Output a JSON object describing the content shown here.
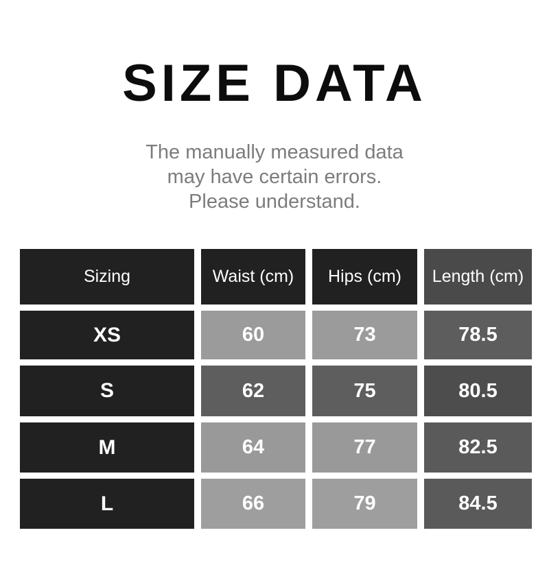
{
  "page": {
    "title": "SIZE DATA",
    "subtitle_lines": [
      "The manually measured data",
      "may have certain errors.",
      "Please understand."
    ]
  },
  "colors": {
    "title_text": "#0c0c0c",
    "subtitle_text": "#7c7c7c",
    "cell_text": "#ffffff",
    "header_dark": "#212121",
    "header_length": "#4a4a4a",
    "row_light_gray": "#9b9b9b",
    "row_dark_gray": "#5e5e5e",
    "length_medium_gray": "#5d5d5d",
    "length_dark_gray": "#4d4d4d"
  },
  "table": {
    "header": {
      "cells": [
        {
          "text": "Sizing",
          "bg": "#212121"
        },
        {
          "text": "Waist (cm)",
          "bg": "#212121"
        },
        {
          "text": "Hips (cm)",
          "bg": "#212121"
        },
        {
          "text": "Length (cm)",
          "bg": "#4a4a4a"
        }
      ]
    },
    "rows": [
      {
        "cells": [
          {
            "text": "XS",
            "bg": "#212121"
          },
          {
            "text": "60",
            "bg": "#9b9b9b"
          },
          {
            "text": "73",
            "bg": "#9b9b9b"
          },
          {
            "text": "78.5",
            "bg": "#5d5d5d"
          }
        ]
      },
      {
        "cells": [
          {
            "text": "S",
            "bg": "#212121"
          },
          {
            "text": "62",
            "bg": "#5e5e5e"
          },
          {
            "text": "75",
            "bg": "#5e5e5e"
          },
          {
            "text": "80.5",
            "bg": "#4d4d4d"
          }
        ]
      },
      {
        "cells": [
          {
            "text": "M",
            "bg": "#212121"
          },
          {
            "text": "64",
            "bg": "#999999"
          },
          {
            "text": "77",
            "bg": "#999999"
          },
          {
            "text": "82.5",
            "bg": "#5a5a5a"
          }
        ]
      },
      {
        "cells": [
          {
            "text": "L",
            "bg": "#212121"
          },
          {
            "text": "66",
            "bg": "#9e9e9e"
          },
          {
            "text": "79",
            "bg": "#9e9e9e"
          },
          {
            "text": "84.5",
            "bg": "#5a5a5a"
          }
        ]
      }
    ]
  },
  "chart_data": {
    "type": "table",
    "title": "SIZE DATA",
    "subtitle": "The manually measured data may have certain errors. Please understand.",
    "columns": [
      "Sizing",
      "Waist (cm)",
      "Hips (cm)",
      "Length (cm)"
    ],
    "rows": [
      [
        "XS",
        60,
        73,
        78.5
      ],
      [
        "S",
        62,
        75,
        80.5
      ],
      [
        "M",
        64,
        77,
        82.5
      ],
      [
        "L",
        66,
        79,
        84.5
      ]
    ]
  }
}
